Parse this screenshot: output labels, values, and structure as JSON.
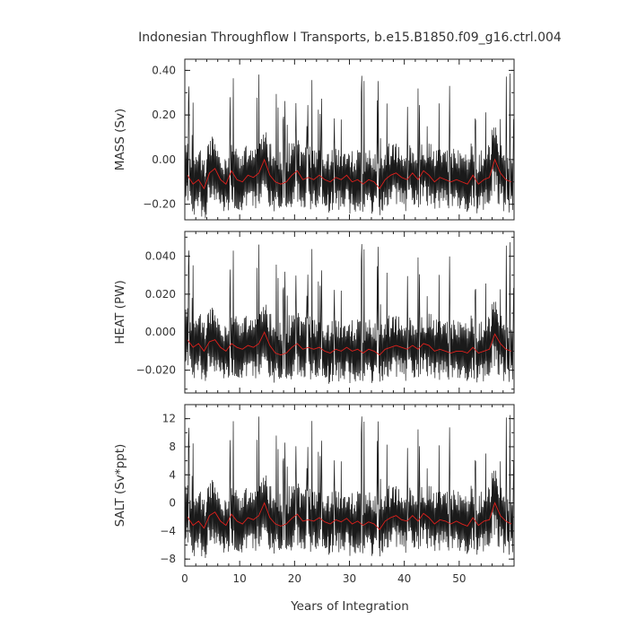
{
  "chart_data": {
    "type": "line",
    "title": "Indonesian Throughflow I Transports, b.e15.B1850.f09_g16.ctrl.004",
    "xlabel": "Years of Integration",
    "xlim": [
      0,
      60
    ],
    "x_ticks": [
      0,
      10,
      20,
      30,
      40,
      50
    ],
    "x_tick_labels": [
      "0",
      "10",
      "20",
      "30",
      "40",
      "50"
    ],
    "series_colors": {
      "raw": "#1a1a1a",
      "smooth": "#e0201c"
    },
    "panels": [
      {
        "ylabel": "MASS (Sv)",
        "ylim": [
          -0.27,
          0.45
        ],
        "y_ticks": [
          0.4,
          0.2,
          0.0,
          -0.2
        ],
        "y_tick_labels": [
          "0.40",
          "0.20",
          "0.00",
          "−0.20"
        ],
        "series": [
          {
            "x": [
              0,
              1,
              2,
              3,
              4,
              5,
              6,
              7,
              8,
              9,
              10,
              11,
              12,
              13,
              14,
              15,
              16,
              17,
              18,
              19,
              20,
              21,
              22,
              23,
              24,
              25,
              26,
              27,
              28,
              29,
              30,
              31,
              32,
              33,
              34,
              35,
              36,
              37,
              38,
              39,
              40,
              41,
              42,
              43,
              44,
              45,
              46,
              47,
              48,
              49,
              50,
              51,
              52,
              53,
              54,
              55,
              56,
              57,
              58,
              59
            ],
            "values": [
              -0.07,
              -0.11,
              -0.09,
              -0.13,
              -0.06,
              -0.04,
              -0.09,
              -0.11,
              -0.05,
              -0.09,
              -0.1,
              -0.07,
              -0.08,
              -0.06,
              0.0,
              -0.07,
              -0.1,
              -0.11,
              -0.1,
              -0.07,
              -0.05,
              -0.09,
              -0.08,
              -0.09,
              -0.07,
              -0.09,
              -0.1,
              -0.08,
              -0.09,
              -0.07,
              -0.1,
              -0.09,
              -0.11,
              -0.09,
              -0.1,
              -0.13,
              -0.09,
              -0.07,
              -0.06,
              -0.08,
              -0.09,
              -0.06,
              -0.09,
              -0.05,
              -0.07,
              -0.1,
              -0.08,
              -0.09,
              -0.1,
              -0.09,
              -0.1,
              -0.11,
              -0.07,
              -0.11,
              -0.09,
              -0.08,
              0.0,
              -0.06,
              -0.09,
              -0.1
            ]
          }
        ]
      },
      {
        "ylabel": "HEAT (PW)",
        "ylim": [
          -0.032,
          0.053
        ],
        "y_ticks": [
          0.04,
          0.02,
          0.0,
          -0.02
        ],
        "y_tick_labels": [
          "0.040",
          "0.020",
          "0.000",
          "−0.020"
        ],
        "series": [
          {
            "x": [
              0,
              1,
              2,
              3,
              4,
              5,
              6,
              7,
              8,
              9,
              10,
              11,
              12,
              13,
              14,
              15,
              16,
              17,
              18,
              19,
              20,
              21,
              22,
              23,
              24,
              25,
              26,
              27,
              28,
              29,
              30,
              31,
              32,
              33,
              34,
              35,
              36,
              37,
              38,
              39,
              40,
              41,
              42,
              43,
              44,
              45,
              46,
              47,
              48,
              49,
              50,
              51,
              52,
              53,
              54,
              55,
              56,
              57,
              58,
              59
            ],
            "values": [
              -0.004,
              -0.008,
              -0.006,
              -0.01,
              -0.005,
              -0.004,
              -0.008,
              -0.01,
              -0.006,
              -0.008,
              -0.009,
              -0.007,
              -0.008,
              -0.006,
              0.0,
              -0.007,
              -0.011,
              -0.012,
              -0.011,
              -0.008,
              -0.006,
              -0.009,
              -0.008,
              -0.009,
              -0.008,
              -0.01,
              -0.011,
              -0.009,
              -0.01,
              -0.008,
              -0.01,
              -0.009,
              -0.011,
              -0.009,
              -0.01,
              -0.012,
              -0.009,
              -0.008,
              -0.007,
              -0.008,
              -0.009,
              -0.007,
              -0.009,
              -0.006,
              -0.007,
              -0.01,
              -0.009,
              -0.01,
              -0.011,
              -0.01,
              -0.01,
              -0.011,
              -0.008,
              -0.011,
              -0.01,
              -0.009,
              -0.001,
              -0.006,
              -0.009,
              -0.01
            ]
          }
        ]
      },
      {
        "ylabel": "SALT (Sv*ppt)",
        "ylim": [
          -9,
          14
        ],
        "y_ticks": [
          12,
          8,
          4,
          0,
          -4,
          -8
        ],
        "y_tick_labels": [
          "12",
          "8",
          "4",
          "0",
          "−4",
          "−8"
        ],
        "series": [
          {
            "x": [
              0,
              1,
              2,
              3,
              4,
              5,
              6,
              7,
              8,
              9,
              10,
              11,
              12,
              13,
              14,
              15,
              16,
              17,
              18,
              19,
              20,
              21,
              22,
              23,
              24,
              25,
              26,
              27,
              28,
              29,
              30,
              31,
              32,
              33,
              34,
              35,
              36,
              37,
              38,
              39,
              40,
              41,
              42,
              43,
              44,
              45,
              46,
              47,
              48,
              49,
              50,
              51,
              52,
              53,
              54,
              55,
              56,
              57,
              58,
              59
            ],
            "values": [
              -2.0,
              -3.2,
              -2.6,
              -3.6,
              -1.8,
              -1.3,
              -2.6,
              -3.2,
              -1.6,
              -2.6,
              -3.0,
              -2.1,
              -2.4,
              -1.8,
              0.0,
              -2.1,
              -3.0,
              -3.3,
              -3.0,
              -2.2,
              -1.6,
              -2.6,
              -2.4,
              -2.6,
              -2.1,
              -2.7,
              -3.0,
              -2.4,
              -2.7,
              -2.2,
              -3.0,
              -2.6,
              -3.2,
              -2.7,
              -3.0,
              -3.8,
              -2.6,
              -2.1,
              -1.8,
              -2.4,
              -2.6,
              -1.8,
              -2.6,
              -1.5,
              -2.1,
              -3.0,
              -2.4,
              -2.6,
              -3.0,
              -2.6,
              -3.0,
              -3.3,
              -2.1,
              -3.2,
              -2.6,
              -2.4,
              0.0,
              -1.8,
              -2.6,
              -3.0
            ]
          }
        ]
      }
    ]
  }
}
